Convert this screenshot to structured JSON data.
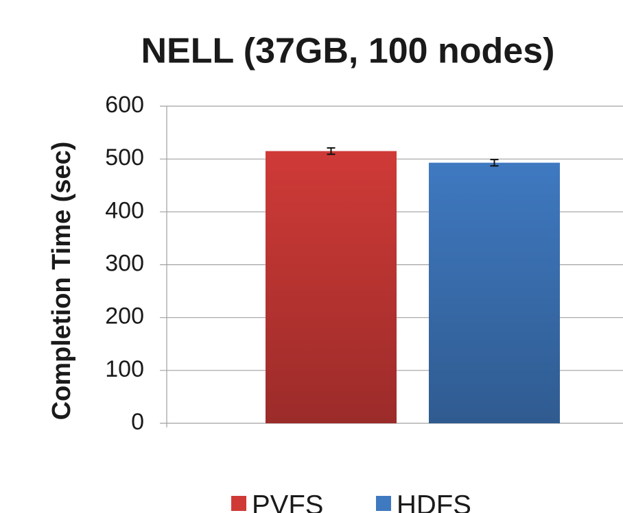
{
  "chart_data": {
    "type": "bar",
    "title": "NELL (37GB, 100 nodes)",
    "y_label": "Completion Time (sec)",
    "categories": [
      null
    ],
    "series": [
      {
        "name": "PVFS",
        "color": "#cf3a37",
        "values": [
          515
        ],
        "errors": [
          6
        ]
      },
      {
        "name": "HDFS",
        "color": "#3f79c0",
        "values": [
          493
        ],
        "errors": [
          6
        ]
      }
    ],
    "ylim": [
      0,
      600
    ],
    "yticks": [
      0,
      100,
      200,
      300,
      400,
      500,
      600
    ],
    "grid": true,
    "legend": "bottom"
  }
}
